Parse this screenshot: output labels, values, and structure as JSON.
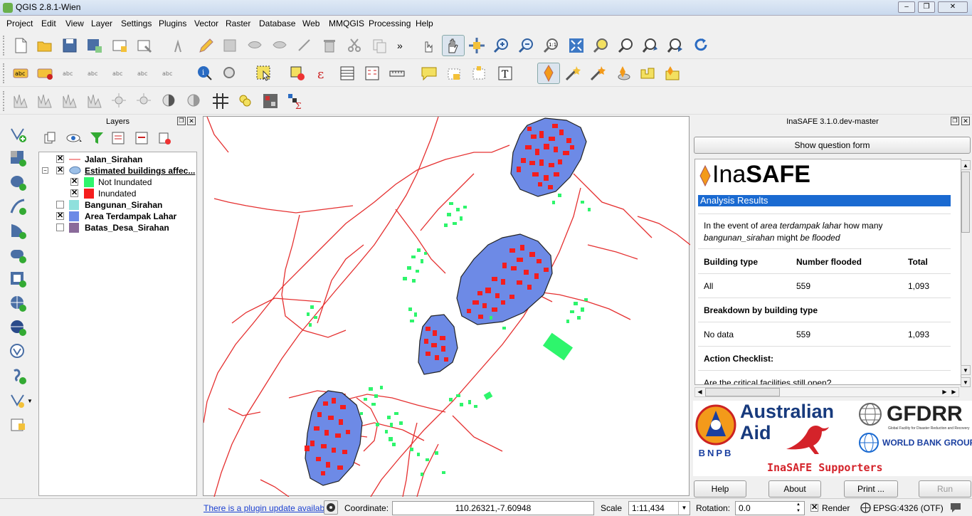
{
  "window": {
    "title": "QGIS 2.8.1-Wien"
  },
  "menu": [
    "Project",
    "Edit",
    "View",
    "Layer",
    "Settings",
    "Plugins",
    "Vector",
    "Raster",
    "Database",
    "Web",
    "MMQGIS",
    "Processing",
    "Help"
  ],
  "layers_panel": {
    "title": "Layers",
    "items": [
      {
        "name": "Jalan_Sirahan",
        "checked": true
      },
      {
        "name": "Estimated buildings affec...",
        "checked": true
      },
      {
        "name": "Not Inundated",
        "checked": true,
        "color": "#2ef56c"
      },
      {
        "name": "Inundated",
        "checked": true,
        "color": "#f51d1d"
      },
      {
        "name": "Bangunan_Sirahan",
        "checked": false,
        "color": "#8fe0dc"
      },
      {
        "name": "Area Terdampak Lahar",
        "checked": true,
        "color": "#6d8ae6"
      },
      {
        "name": "Batas_Desa_Sirahan",
        "checked": false,
        "color": "#8a6a9a"
      }
    ]
  },
  "inasafe": {
    "title": "InaSAFE 3.1.0.dev-master",
    "show_question": "Show question form",
    "logo_prefix": "Ina",
    "logo_bold": "SAFE",
    "analysis_header": "Analysis Results",
    "question_part1": "In the event of ",
    "question_hazard": "area terdampak lahar",
    "question_part2": " how many",
    "question_exposure": "bangunan_sirahan",
    "question_part3": " might ",
    "question_flooded": "be flooded",
    "table_headers": [
      "Building type",
      "Number flooded",
      "Total"
    ],
    "row_all": [
      "All",
      "559",
      "1,093"
    ],
    "breakdown_title": "Breakdown by building type",
    "row_nodata": [
      "No data",
      "559",
      "1,093"
    ],
    "checklist_title": "Action Checklist:",
    "checklist_q": "Are the critical facilities still open?",
    "supporters": {
      "bnpb": "BNPB",
      "aus1": "Australian",
      "aus2": "Aid",
      "gfdrr": "GFDRR",
      "gfdrr_sub": "Global Facility for Disaster Reduction and Recovery",
      "wb": "WORLD BANK GROUP",
      "caption": "InaSAFE Supporters"
    },
    "buttons": {
      "help": "Help",
      "about": "About",
      "print": "Print ...",
      "run": "Run"
    }
  },
  "status": {
    "plugin_update": "There is a plugin update available",
    "coordinate_label": "Coordinate:",
    "coordinate": "110.26321,-7.60948",
    "scale_label": "Scale",
    "scale": "1:11,434",
    "rotation_label": "Rotation:",
    "rotation": "0.0",
    "render": "Render",
    "crs": "EPSG:4326 (OTF)"
  }
}
